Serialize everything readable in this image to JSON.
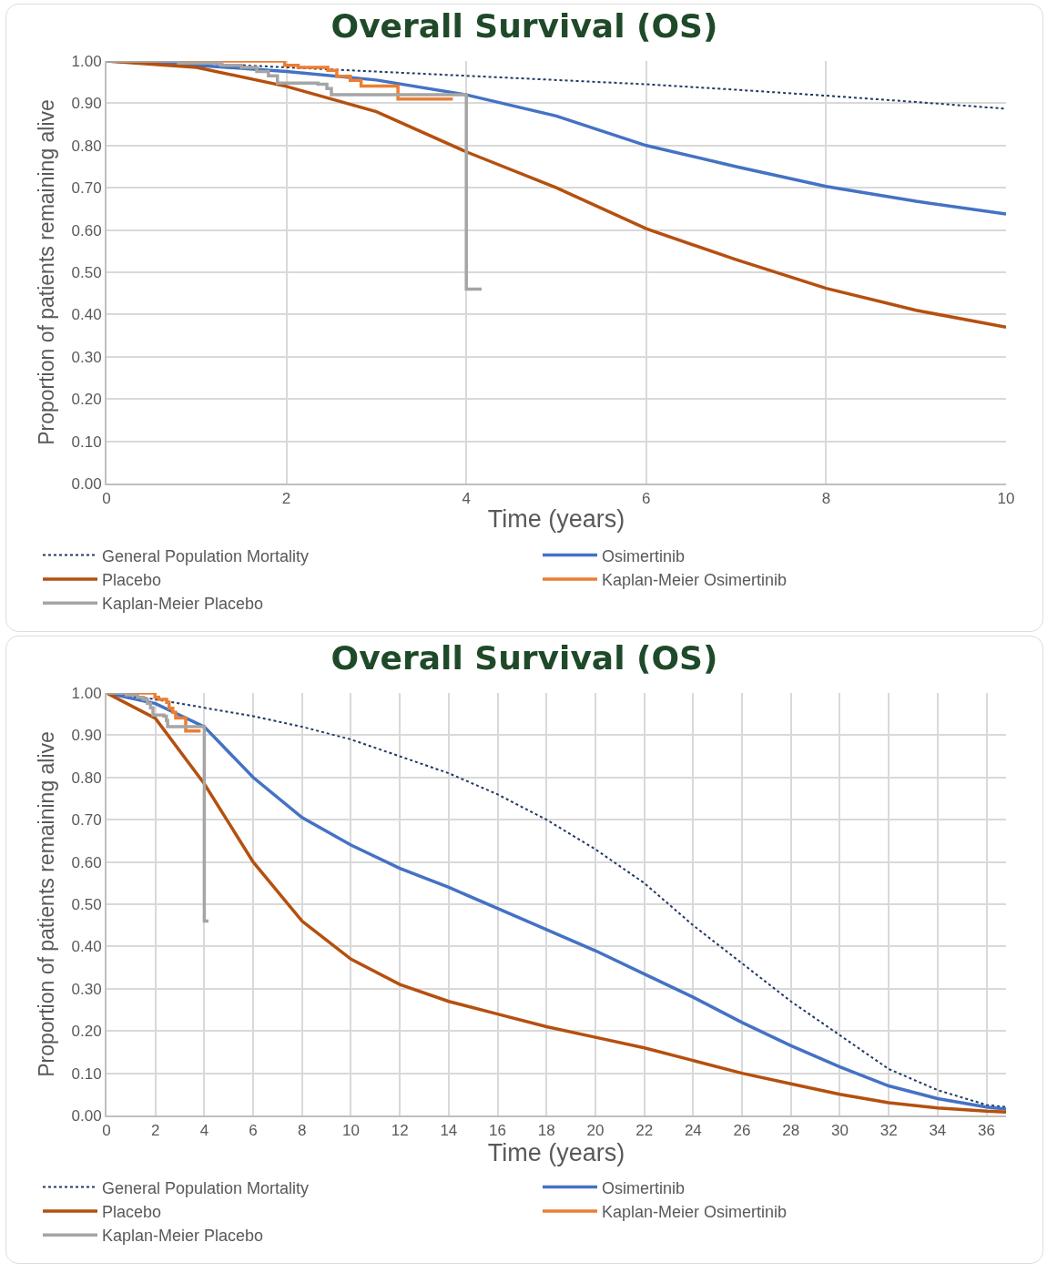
{
  "chart_data": [
    {
      "type": "line",
      "title": "Overall Survival (OS)",
      "xlabel": "Time (years)",
      "ylabel": "Proportion of patients remaining alive",
      "xlim": [
        0,
        10
      ],
      "xticks": [
        0,
        2,
        4,
        6,
        8,
        10
      ],
      "ylim": [
        0,
        1
      ],
      "yticks": [
        {
          "value": 0,
          "label": "0.00"
        },
        {
          "value": 0.1,
          "label": "0.10"
        },
        {
          "value": 0.2,
          "label": "0.20"
        },
        {
          "value": 0.3,
          "label": "0.30"
        },
        {
          "value": 0.4,
          "label": "0.40"
        },
        {
          "value": 0.5,
          "label": "0.50"
        },
        {
          "value": 0.6,
          "label": "0.60"
        },
        {
          "value": 0.7,
          "label": "0.70"
        },
        {
          "value": 0.8,
          "label": "0.80"
        },
        {
          "value": 0.9,
          "label": "0.90"
        },
        {
          "value": 1,
          "label": "1.00"
        }
      ],
      "grid": true,
      "legend": "bottom",
      "series": [
        {
          "name": "General Population Mortality",
          "color": "#203864",
          "line_style": "dotted",
          "x": [
            0,
            1,
            2,
            3,
            4,
            5,
            6,
            7,
            8,
            9,
            10
          ],
          "values": [
            1,
            0.995,
            0.985,
            0.975,
            0.965,
            0.955,
            0.945,
            0.932,
            0.918,
            0.903,
            0.887
          ]
        },
        {
          "name": "Osimertinib",
          "color": "#4472c4",
          "x": [
            0,
            1,
            2,
            3,
            4,
            5,
            6,
            7,
            8,
            9,
            10
          ],
          "values": [
            1,
            0.99,
            0.975,
            0.955,
            0.92,
            0.87,
            0.8,
            0.75,
            0.703,
            0.668,
            0.638
          ]
        },
        {
          "name": "Placebo",
          "color": "#b5500f",
          "x": [
            0,
            1,
            2,
            3,
            4,
            5,
            6,
            7,
            8,
            9,
            10
          ],
          "values": [
            1,
            0.985,
            0.94,
            0.88,
            0.785,
            0.7,
            0.603,
            0.53,
            0.462,
            0.41,
            0.37
          ]
        },
        {
          "name": "Kaplan-Meier Osimertinib",
          "type": "step",
          "color": "#ed7d31",
          "x": [
            0,
            1.98,
            2.13,
            2.46,
            2.56,
            2.71,
            2.83,
            3.24,
            3.85
          ],
          "values": [
            1,
            0.99,
            0.985,
            0.978,
            0.964,
            0.954,
            0.941,
            0.91,
            0.91
          ]
        },
        {
          "name": "Kaplan-Meier Placebo",
          "type": "step",
          "color": "#a5a5a5",
          "x": [
            0,
            0.8,
            1.27,
            1.5,
            1.67,
            1.8,
            1.9,
            2.35,
            2.45,
            2.5,
            4.0,
            4.17
          ],
          "values": [
            1,
            0.995,
            0.99,
            0.985,
            0.975,
            0.965,
            0.948,
            0.945,
            0.935,
            0.92,
            0.46,
            0.46
          ]
        }
      ]
    },
    {
      "type": "line",
      "title": "Overall Survival (OS)",
      "xlabel": "Time (years)",
      "ylabel": "Proportion of patients remaining alive",
      "xlim": [
        0,
        36.8
      ],
      "xticks": [
        0,
        2,
        4,
        6,
        8,
        10,
        12,
        14,
        16,
        18,
        20,
        22,
        24,
        26,
        28,
        30,
        32,
        34,
        36
      ],
      "ylim": [
        0,
        1
      ],
      "yticks": [
        {
          "value": 0,
          "label": "0.00"
        },
        {
          "value": 0.1,
          "label": "0.10"
        },
        {
          "value": 0.2,
          "label": "0.20"
        },
        {
          "value": 0.3,
          "label": "0.30"
        },
        {
          "value": 0.4,
          "label": "0.40"
        },
        {
          "value": 0.5,
          "label": "0.50"
        },
        {
          "value": 0.6,
          "label": "0.60"
        },
        {
          "value": 0.7,
          "label": "0.70"
        },
        {
          "value": 0.8,
          "label": "0.80"
        },
        {
          "value": 0.9,
          "label": "0.90"
        },
        {
          "value": 1,
          "label": "1.00"
        }
      ],
      "grid": true,
      "legend": "bottom",
      "series": [
        {
          "name": "General Population Mortality",
          "color": "#203864",
          "line_style": "dotted",
          "x": [
            0,
            2,
            4,
            6,
            8,
            10,
            12,
            14,
            16,
            18,
            20,
            22,
            24,
            26,
            28,
            30,
            32,
            34,
            36,
            36.8
          ],
          "values": [
            1,
            0.985,
            0.965,
            0.945,
            0.92,
            0.89,
            0.85,
            0.81,
            0.76,
            0.7,
            0.63,
            0.55,
            0.45,
            0.36,
            0.27,
            0.19,
            0.11,
            0.06,
            0.025,
            0.02
          ]
        },
        {
          "name": "Osimertinib",
          "color": "#4472c4",
          "x": [
            0,
            2,
            4,
            6,
            8,
            10,
            12,
            14,
            16,
            18,
            20,
            22,
            24,
            26,
            28,
            30,
            32,
            34,
            36,
            36.8
          ],
          "values": [
            1,
            0.975,
            0.92,
            0.8,
            0.705,
            0.64,
            0.585,
            0.54,
            0.49,
            0.44,
            0.39,
            0.335,
            0.28,
            0.22,
            0.165,
            0.115,
            0.07,
            0.04,
            0.02,
            0.015
          ]
        },
        {
          "name": "Placebo",
          "color": "#b5500f",
          "x": [
            0,
            2,
            4,
            6,
            8,
            10,
            12,
            14,
            16,
            18,
            20,
            22,
            24,
            26,
            28,
            30,
            32,
            34,
            36,
            36.8
          ],
          "values": [
            1,
            0.94,
            0.785,
            0.6,
            0.46,
            0.37,
            0.31,
            0.27,
            0.24,
            0.21,
            0.185,
            0.16,
            0.13,
            0.1,
            0.075,
            0.05,
            0.03,
            0.018,
            0.01,
            0.008
          ]
        },
        {
          "name": "Kaplan-Meier Osimertinib",
          "type": "step",
          "color": "#ed7d31",
          "x": [
            0,
            1.98,
            2.13,
            2.46,
            2.56,
            2.71,
            2.83,
            3.24,
            3.85
          ],
          "values": [
            1,
            0.99,
            0.985,
            0.978,
            0.964,
            0.954,
            0.941,
            0.91,
            0.91
          ]
        },
        {
          "name": "Kaplan-Meier Placebo",
          "type": "step",
          "color": "#a5a5a5",
          "x": [
            0,
            0.8,
            1.27,
            1.5,
            1.67,
            1.8,
            1.9,
            2.35,
            2.45,
            2.5,
            4.0,
            4.17
          ],
          "values": [
            1,
            0.995,
            0.99,
            0.985,
            0.975,
            0.965,
            0.948,
            0.945,
            0.935,
            0.92,
            0.46,
            0.46
          ]
        }
      ]
    }
  ]
}
